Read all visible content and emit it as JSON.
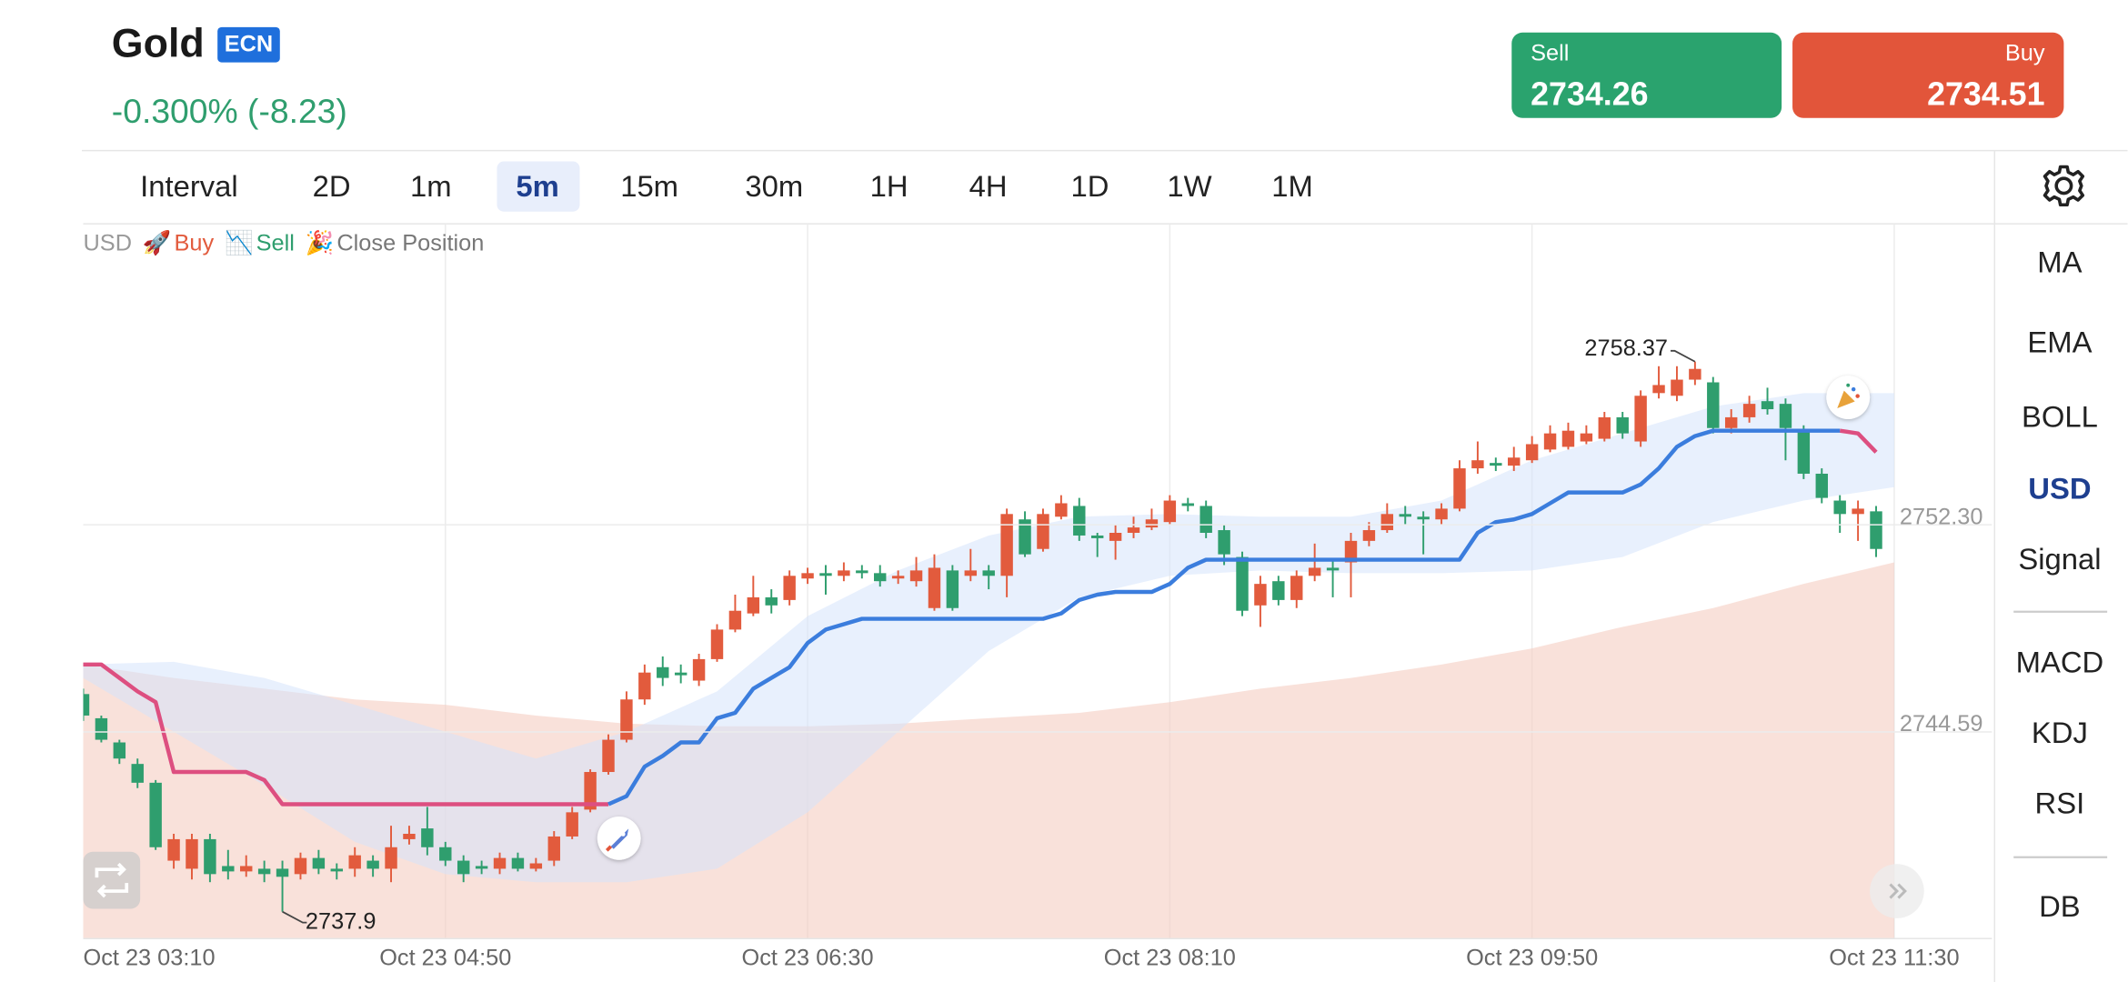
{
  "header": {
    "symbol": "Gold",
    "badge": "ECN",
    "change": "-0.300% (-8.23)",
    "sell": {
      "label": "Sell",
      "price": "2734.26"
    },
    "buy": {
      "label": "Buy",
      "price": "2734.51"
    }
  },
  "intervals": {
    "items": [
      "Interval",
      "2D",
      "1m",
      "5m",
      "15m",
      "30m",
      "1H",
      "4H",
      "1D",
      "1W",
      "1M"
    ],
    "selected": "5m"
  },
  "indicators": {
    "groups": [
      [
        "MA",
        "EMA",
        "BOLL",
        "USD",
        "Signal"
      ],
      [
        "MACD",
        "KDJ",
        "RSI"
      ],
      [
        "DB"
      ]
    ],
    "selected": "USD"
  },
  "chart_data": {
    "type": "candlestick",
    "currency": "USD",
    "legend": [
      {
        "icon": "🚀",
        "label": "Buy",
        "color": "#e25b3d"
      },
      {
        "icon": "📉",
        "label": "Sell",
        "color": "#2f9e6e"
      },
      {
        "icon": "🎉",
        "label": "Close Position",
        "color": "#777777"
      }
    ],
    "up_color": "#e25b3d",
    "down_color": "#2f9e6e",
    "open": [
      2746.0,
      2745.1,
      2744.2,
      2743.4,
      2742.7,
      2739.8,
      2739.5,
      2740.6,
      2739.6,
      2739.4,
      2739.5,
      2739.5,
      2739.3,
      2739.9,
      2739.5,
      2739.5,
      2739.8,
      2739.5,
      2740.6,
      2741.0,
      2740.3,
      2739.8,
      2739.6,
      2739.5,
      2739.9,
      2739.5,
      2739.8,
      2740.7,
      2741.7,
      2743.1,
      2744.3,
      2745.8,
      2747.0,
      2746.8,
      2746.5,
      2747.3,
      2748.4,
      2749.0,
      2749.6,
      2749.5,
      2750.3,
      2750.5,
      2750.4,
      2750.6,
      2750.5,
      2750.3,
      2750.2,
      2749.2,
      2750.6,
      2750.4,
      2750.6,
      2750.4,
      2752.5,
      2751.4,
      2752.6,
      2753.0,
      2751.9,
      2751.7,
      2752.0,
      2752.2,
      2752.4,
      2753.1,
      2753.0,
      2752.1,
      2751.1,
      2749.3,
      2750.2,
      2749.5,
      2750.4,
      2750.7,
      2750.9,
      2751.7,
      2752.1,
      2752.7,
      2752.6,
      2752.5,
      2752.9,
      2754.4,
      2754.6,
      2754.5,
      2754.7,
      2755.1,
      2755.2,
      2755.4,
      2755.5,
      2756.3,
      2755.4,
      2757.2,
      2757.1,
      2757.7,
      2757.6,
      2755.9,
      2756.3,
      2756.9,
      2756.8,
      2755.8,
      2754.2,
      2753.2,
      2752.7,
      2752.8
    ],
    "high": [
      2746.2,
      2745.2,
      2744.3,
      2743.6,
      2742.8,
      2740.8,
      2740.8,
      2740.8,
      2740.2,
      2740.0,
      2739.8,
      2739.8,
      2740.1,
      2740.2,
      2739.7,
      2740.3,
      2740.0,
      2741.1,
      2741.1,
      2741.8,
      2740.5,
      2740.0,
      2739.8,
      2740.1,
      2740.1,
      2739.9,
      2740.9,
      2741.8,
      2743.2,
      2744.5,
      2746.1,
      2747.1,
      2747.4,
      2747.1,
      2747.5,
      2748.6,
      2749.7,
      2750.4,
      2749.9,
      2750.6,
      2750.7,
      2750.8,
      2750.9,
      2750.8,
      2750.8,
      2750.6,
      2751.1,
      2751.2,
      2750.8,
      2751.4,
      2750.8,
      2752.9,
      2752.8,
      2752.9,
      2753.4,
      2753.3,
      2752.0,
      2752.3,
      2752.6,
      2752.9,
      2753.4,
      2753.3,
      2753.2,
      2752.3,
      2751.3,
      2750.4,
      2750.4,
      2750.6,
      2751.6,
      2751.0,
      2752.0,
      2752.4,
      2753.1,
      2753.0,
      2752.8,
      2753.1,
      2754.7,
      2755.4,
      2754.8,
      2755.2,
      2755.6,
      2756.0,
      2756.1,
      2756.0,
      2756.5,
      2756.5,
      2757.3,
      2758.2,
      2758.2,
      2758.37,
      2757.8,
      2756.6,
      2757.1,
      2757.4,
      2757.0,
      2756.0,
      2754.4,
      2753.4,
      2753.2,
      2753.0
    ],
    "low": [
      2745.0,
      2744.2,
      2743.4,
      2742.5,
      2740.2,
      2739.5,
      2739.1,
      2739.0,
      2739.1,
      2739.2,
      2739.0,
      2737.9,
      2739.1,
      2739.3,
      2739.1,
      2739.2,
      2739.2,
      2739.0,
      2740.4,
      2740.0,
      2739.6,
      2739.0,
      2739.3,
      2739.3,
      2739.4,
      2739.4,
      2739.6,
      2740.6,
      2741.6,
      2743.0,
      2744.2,
      2745.6,
      2746.3,
      2746.4,
      2746.3,
      2747.2,
      2748.3,
      2748.9,
      2749.0,
      2749.3,
      2750.1,
      2749.7,
      2750.2,
      2750.3,
      2750.0,
      2750.1,
      2750.0,
      2749.1,
      2749.1,
      2750.2,
      2749.9,
      2749.6,
      2751.1,
      2751.3,
      2752.5,
      2751.7,
      2751.1,
      2751.0,
      2751.8,
      2752.1,
      2752.3,
      2752.8,
      2751.8,
      2750.8,
      2748.9,
      2748.5,
      2749.3,
      2749.2,
      2750.2,
      2749.6,
      2749.6,
      2751.5,
      2752.0,
      2752.3,
      2751.2,
      2752.3,
      2752.8,
      2754.2,
      2754.3,
      2754.3,
      2754.6,
      2755.0,
      2755.1,
      2755.3,
      2755.4,
      2755.5,
      2755.2,
      2757.0,
      2756.9,
      2757.5,
      2755.7,
      2755.7,
      2756.1,
      2756.4,
      2754.7,
      2754.0,
      2753.1,
      2752.0,
      2751.7,
      2751.1
    ],
    "close": [
      2745.2,
      2744.3,
      2743.6,
      2742.7,
      2740.3,
      2740.6,
      2740.6,
      2739.3,
      2739.4,
      2739.6,
      2739.3,
      2739.2,
      2739.9,
      2739.5,
      2739.4,
      2740.0,
      2739.5,
      2740.3,
      2740.8,
      2740.3,
      2739.8,
      2739.3,
      2739.5,
      2739.9,
      2739.5,
      2739.7,
      2740.7,
      2741.6,
      2743.1,
      2744.3,
      2745.8,
      2746.8,
      2746.6,
      2746.7,
      2747.3,
      2748.4,
      2749.1,
      2749.6,
      2749.3,
      2750.4,
      2750.5,
      2750.4,
      2750.6,
      2750.5,
      2750.2,
      2750.4,
      2750.6,
      2750.7,
      2749.2,
      2750.6,
      2750.4,
      2752.7,
      2751.2,
      2752.7,
      2753.1,
      2751.9,
      2751.8,
      2752.0,
      2752.2,
      2752.5,
      2753.2,
      2753.0,
      2752.0,
      2751.2,
      2749.1,
      2750.1,
      2749.5,
      2750.4,
      2750.7,
      2750.6,
      2751.7,
      2752.1,
      2752.7,
      2752.6,
      2752.5,
      2752.9,
      2754.4,
      2754.7,
      2754.5,
      2754.8,
      2755.3,
      2755.7,
      2755.8,
      2755.7,
      2756.3,
      2755.7,
      2757.1,
      2757.5,
      2757.7,
      2758.1,
      2755.9,
      2756.3,
      2756.8,
      2756.6,
      2755.9,
      2754.2,
      2753.3,
      2752.7,
      2752.9,
      2751.4
    ],
    "trend": [
      {
        "color": "#dd4f80",
        "values": [
          2747.1,
          2747.1,
          2746.6,
          2746.1,
          2745.7,
          2743.1,
          2743.1,
          2743.1,
          2743.1,
          2743.1,
          2742.8,
          2741.9,
          2741.9,
          2741.9,
          2741.9,
          2741.9,
          2741.9,
          2741.9,
          2741.9,
          2741.9,
          2741.9,
          2741.9,
          2741.9,
          2741.9,
          2741.9,
          2741.9,
          2741.9,
          2741.9,
          2741.9,
          2741.9,
          null,
          null,
          null,
          null,
          null,
          null,
          null,
          null,
          null,
          null,
          null,
          null,
          null,
          null,
          null,
          null,
          null,
          null,
          null,
          null,
          null,
          null,
          null,
          null,
          null,
          null,
          null,
          null,
          null,
          null,
          null,
          null,
          null,
          null,
          null,
          null,
          null,
          null,
          null,
          null,
          null,
          null,
          null,
          null,
          null,
          null,
          null,
          null,
          null,
          null,
          null,
          null,
          null,
          null,
          null,
          null,
          null,
          null,
          null,
          null,
          null,
          null,
          null,
          null,
          null,
          null,
          null,
          2755.8,
          2755.7,
          2755.0
        ]
      },
      {
        "color": "#3b7ddd",
        "values": [
          null,
          null,
          null,
          null,
          null,
          null,
          null,
          null,
          null,
          null,
          null,
          null,
          null,
          null,
          null,
          null,
          null,
          null,
          null,
          null,
          null,
          null,
          null,
          null,
          null,
          null,
          null,
          null,
          null,
          2741.9,
          2742.2,
          2743.3,
          2743.7,
          2744.2,
          2744.2,
          2745.1,
          2745.3,
          2746.2,
          2746.6,
          2747.0,
          2747.9,
          2748.4,
          2748.6,
          2748.8,
          2748.8,
          2748.8,
          2748.8,
          2748.8,
          2748.8,
          2748.8,
          2748.8,
          2748.8,
          2748.8,
          2748.8,
          2749.0,
          2749.5,
          2749.7,
          2749.8,
          2749.8,
          2749.8,
          2750.1,
          2750.7,
          2751.0,
          2751.0,
          2751.0,
          2751.0,
          2751.0,
          2751.0,
          2751.0,
          2751.0,
          2751.0,
          2751.0,
          2751.0,
          2751.0,
          2751.0,
          2751.0,
          2751.0,
          2752.0,
          2752.4,
          2752.5,
          2752.7,
          2753.1,
          2753.5,
          2753.5,
          2753.5,
          2753.5,
          2753.8,
          2754.4,
          2755.2,
          2755.6,
          2755.8,
          2755.8,
          2755.8,
          2755.8,
          2755.8,
          2755.8,
          2755.8,
          2755.8,
          null,
          null
        ]
      }
    ],
    "band": {
      "color": "#d6e4fb",
      "x": [
        0,
        5,
        10,
        15,
        20,
        25,
        30,
        35,
        40,
        45,
        50,
        55,
        60,
        65,
        70,
        75,
        80,
        85,
        90,
        95,
        100
      ],
      "upper": [
        2747.1,
        2747.2,
        2746.6,
        2745.6,
        2744.6,
        2743.6,
        2744.6,
        2746.1,
        2748.9,
        2750.6,
        2751.9,
        2752.6,
        2752.7,
        2752.6,
        2752.6,
        2753.2,
        2754.7,
        2755.7,
        2756.7,
        2757.2,
        2757.2
      ],
      "lower": [
        2746.6,
        2744.6,
        2742.6,
        2740.5,
        2739.3,
        2739.0,
        2739.0,
        2739.5,
        2741.6,
        2744.6,
        2747.6,
        2749.6,
        2750.4,
        2750.6,
        2750.5,
        2750.5,
        2750.6,
        2751.1,
        2752.4,
        2753.2,
        2753.7
      ]
    },
    "area": {
      "color": "#f5cdc1",
      "x": [
        0,
        5,
        10,
        15,
        20,
        25,
        30,
        35,
        40,
        45,
        50,
        55,
        60,
        65,
        70,
        75,
        80,
        85,
        90,
        95,
        100
      ],
      "values": [
        2747.1,
        2746.6,
        2746.2,
        2745.8,
        2745.6,
        2745.2,
        2744.9,
        2744.8,
        2744.8,
        2744.9,
        2745.1,
        2745.3,
        2745.7,
        2746.2,
        2746.6,
        2747.1,
        2747.7,
        2748.5,
        2749.2,
        2750.1,
        2750.9
      ]
    },
    "annotations": [
      {
        "index": 89,
        "value": 2758.37
      },
      {
        "index": 11,
        "value": 2737.9
      }
    ],
    "xlim": [
      0,
      100
    ],
    "ylim": [
      2736.9,
      2763.5
    ],
    "xticks": [
      {
        "value": 0,
        "label": "Oct 23 03:10"
      },
      {
        "value": 20,
        "label": "Oct 23 04:50"
      },
      {
        "value": 40,
        "label": "Oct 23 06:30"
      },
      {
        "value": 60,
        "label": "Oct 23 08:10"
      },
      {
        "value": 80,
        "label": "Oct 23 09:50"
      },
      {
        "value": 100,
        "label": "Oct 23 11:30"
      }
    ],
    "yticks": [
      {
        "value": 2752.3,
        "label": "2752.30"
      },
      2744.59
    ],
    "grid": true
  }
}
